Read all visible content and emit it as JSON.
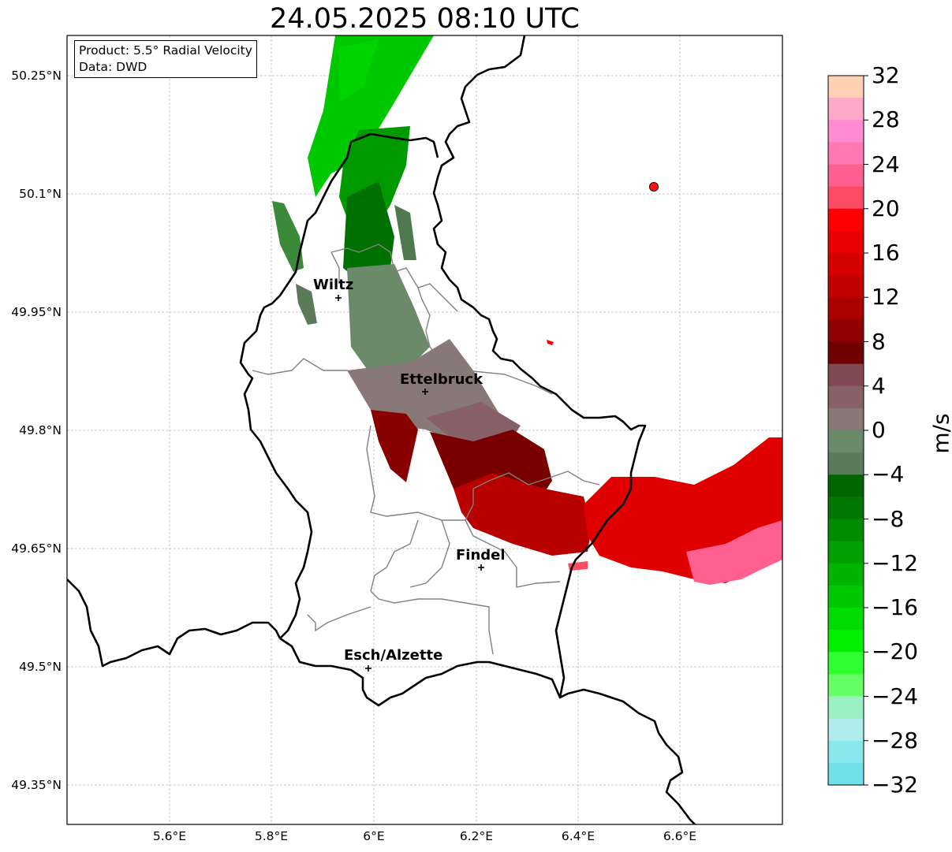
{
  "title": "24.05.2025 08:10 UTC",
  "info_box": {
    "product": "Product: 5.5° Radial Velocity",
    "data": "Data: DWD"
  },
  "cities": [
    {
      "name": "Wiltz",
      "lon": 5.93,
      "lat": 49.966
    },
    {
      "name": "Ettelbruck",
      "lon": 6.1,
      "lat": 49.847
    },
    {
      "name": "Findel",
      "lon": 6.21,
      "lat": 49.624
    },
    {
      "name": "Esch/Alzette",
      "lon": 5.99,
      "lat": 49.496
    }
  ],
  "radar_site": {
    "lon": 6.548,
    "lat": 50.11
  },
  "axes": {
    "lat_labels": [
      "50.25°N",
      "50.1°N",
      "49.95°N",
      "49.8°N",
      "49.65°N",
      "49.5°N",
      "49.35°N"
    ],
    "lon_labels": [
      "5.6°E",
      "5.8°E",
      "6°E",
      "6.2°E",
      "6.4°E",
      "6.6°E"
    ],
    "lon_range": [
      5.4,
      6.8
    ],
    "lat_range": [
      49.3,
      50.3
    ]
  },
  "colorbar": {
    "label": "m/s",
    "ticks": [
      "32",
      "28",
      "24",
      "20",
      "16",
      "12",
      "8",
      "4",
      "0",
      "−4",
      "−8",
      "−12",
      "−16",
      "−20",
      "−24",
      "−28",
      "−32"
    ],
    "colors_top_to_bottom": [
      "#ffd0b4",
      "#ffa8c8",
      "#ff8cd0",
      "#ff78b4",
      "#ff6090",
      "#ff4c64",
      "#ff0000",
      "#e80000",
      "#d40000",
      "#c00000",
      "#aa0000",
      "#900000",
      "#700000",
      "#804850",
      "#886068",
      "#887878",
      "#6a8a6a",
      "#5a7a5a",
      "#006400",
      "#007800",
      "#008c00",
      "#00a000",
      "#00b400",
      "#00c800",
      "#00dc00",
      "#00f000",
      "#30ff30",
      "#66ff66",
      "#99f0c0",
      "#b0ecec",
      "#88e8ec",
      "#70e0e8"
    ]
  }
}
